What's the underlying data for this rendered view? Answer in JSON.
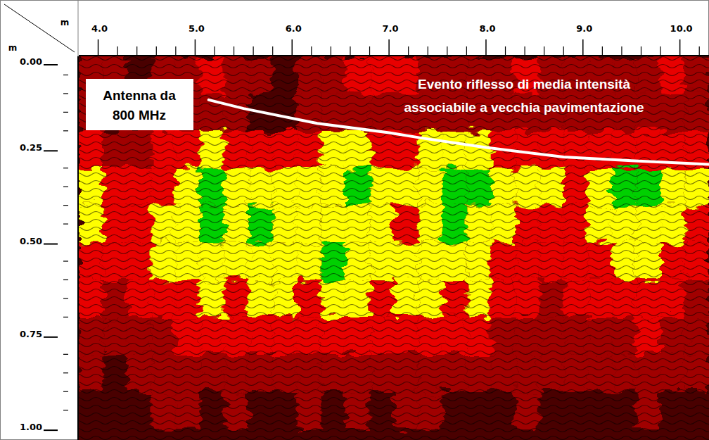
{
  "chart_data": {
    "type": "radargram",
    "x_label": "m",
    "y_label": "m",
    "xlim": [
      3.8,
      10.3
    ],
    "ylim": [
      1.03,
      0
    ],
    "xticks": [
      {
        "value": 4,
        "label": "4.0"
      },
      {
        "value": 5,
        "label": "5.0"
      },
      {
        "value": 6,
        "label": "6.0"
      },
      {
        "value": 7,
        "label": "7.0"
      },
      {
        "value": 8,
        "label": "8.0"
      },
      {
        "value": 9,
        "label": "9.0"
      },
      {
        "value": 10,
        "label": "10.0"
      }
    ],
    "xticks_minor": [
      4.2,
      4.4,
      4.6,
      4.8,
      5.2,
      5.4,
      5.6,
      5.8,
      6.2,
      6.4,
      6.6,
      6.8,
      7.2,
      7.4,
      7.6,
      7.8,
      8.2,
      8.4,
      8.6,
      8.8,
      9.2,
      9.4,
      9.6,
      9.8,
      10.2
    ],
    "yticks": [
      {
        "value": 0,
        "label": "0.00"
      },
      {
        "value": 0.25,
        "label": "0.25"
      },
      {
        "value": 0.5,
        "label": "0.50"
      },
      {
        "value": 0.75,
        "label": "0.75"
      },
      {
        "value": 1,
        "label": "1.00"
      }
    ],
    "yticks_minor": [
      0.05,
      0.1,
      0.15,
      0.2,
      0.3,
      0.35,
      0.4,
      0.45,
      0.55,
      0.6,
      0.65,
      0.7,
      0.8,
      0.85,
      0.9,
      0.95
    ],
    "x_bins": [
      3.8,
      4.05,
      4.3,
      4.55,
      4.8,
      5.05,
      5.3,
      5.55,
      5.8,
      6.05,
      6.3,
      6.55,
      6.8,
      7.05,
      7.3,
      7.55,
      7.8,
      8.05,
      8.3,
      8.55,
      8.8,
      9.05,
      9.3,
      9.55,
      9.8,
      10.05,
      10.3
    ],
    "y_bins": [
      0,
      0.1,
      0.2,
      0.3,
      0.4,
      0.5,
      0.6,
      0.7,
      0.8,
      0.9,
      1.0
    ],
    "levels": [
      0,
      1,
      2,
      3,
      4
    ],
    "colors": [
      "#4a0000",
      "#a00000",
      "#e80000",
      "#ffff00",
      "#00d000"
    ],
    "cells": [
      [
        1,
        1,
        0,
        1,
        1,
        2,
        1,
        1,
        0,
        1,
        1,
        2,
        2,
        2,
        1,
        1,
        1,
        1,
        2,
        1,
        1,
        1,
        1,
        1,
        2,
        1
      ],
      [
        1,
        0,
        0,
        1,
        1,
        1,
        1,
        0,
        0,
        1,
        1,
        1,
        1,
        1,
        1,
        1,
        1,
        1,
        1,
        1,
        1,
        1,
        1,
        1,
        1,
        1
      ],
      [
        2,
        1,
        1,
        2,
        2,
        3,
        2,
        2,
        2,
        2,
        3,
        3,
        2,
        2,
        3,
        3,
        3,
        2,
        2,
        2,
        2,
        2,
        2,
        2,
        2,
        2
      ],
      [
        3,
        2,
        2,
        2,
        3,
        4,
        3,
        3,
        3,
        3,
        3,
        4,
        3,
        3,
        3,
        4,
        4,
        3,
        3,
        3,
        2,
        3,
        4,
        4,
        3,
        3
      ],
      [
        3,
        2,
        2,
        3,
        3,
        4,
        3,
        4,
        3,
        3,
        3,
        3,
        3,
        2,
        3,
        4,
        3,
        3,
        2,
        2,
        2,
        3,
        3,
        3,
        3,
        2
      ],
      [
        2,
        2,
        2,
        3,
        3,
        3,
        3,
        3,
        3,
        3,
        4,
        3,
        3,
        3,
        3,
        3,
        3,
        2,
        2,
        2,
        2,
        2,
        3,
        3,
        2,
        2
      ],
      [
        2,
        1,
        2,
        2,
        2,
        3,
        2,
        3,
        3,
        2,
        3,
        3,
        2,
        3,
        3,
        2,
        3,
        2,
        2,
        1,
        2,
        2,
        2,
        2,
        2,
        1
      ],
      [
        1,
        1,
        1,
        1,
        2,
        2,
        2,
        2,
        2,
        2,
        2,
        2,
        2,
        2,
        2,
        2,
        2,
        1,
        1,
        1,
        1,
        1,
        1,
        2,
        1,
        1
      ],
      [
        1,
        0,
        1,
        1,
        1,
        1,
        1,
        1,
        1,
        1,
        1,
        1,
        1,
        1,
        1,
        1,
        1,
        1,
        1,
        1,
        1,
        1,
        1,
        1,
        1,
        1
      ],
      [
        0,
        0,
        0,
        1,
        1,
        0,
        1,
        0,
        0,
        1,
        0,
        1,
        0,
        1,
        1,
        0,
        0,
        0,
        1,
        0,
        0,
        0,
        0,
        1,
        0,
        0
      ]
    ],
    "series": [
      {
        "color": "#ffffff",
        "x": [
          5.14,
          5.5,
          6.26,
          7.0,
          7.35,
          8.0,
          8.8,
          9.5,
          10.3
        ],
        "values": [
          0.117,
          0.14,
          0.18,
          0.205,
          0.22,
          0.245,
          0.27,
          0.28,
          0.29
        ]
      }
    ],
    "annotations": [
      {
        "lines": [
          "Antenna da",
          "800 MHz"
        ]
      },
      {
        "lines": [
          "Evento riflesso di media intensità",
          "associabile a vecchia pavimentazione"
        ]
      }
    ]
  }
}
